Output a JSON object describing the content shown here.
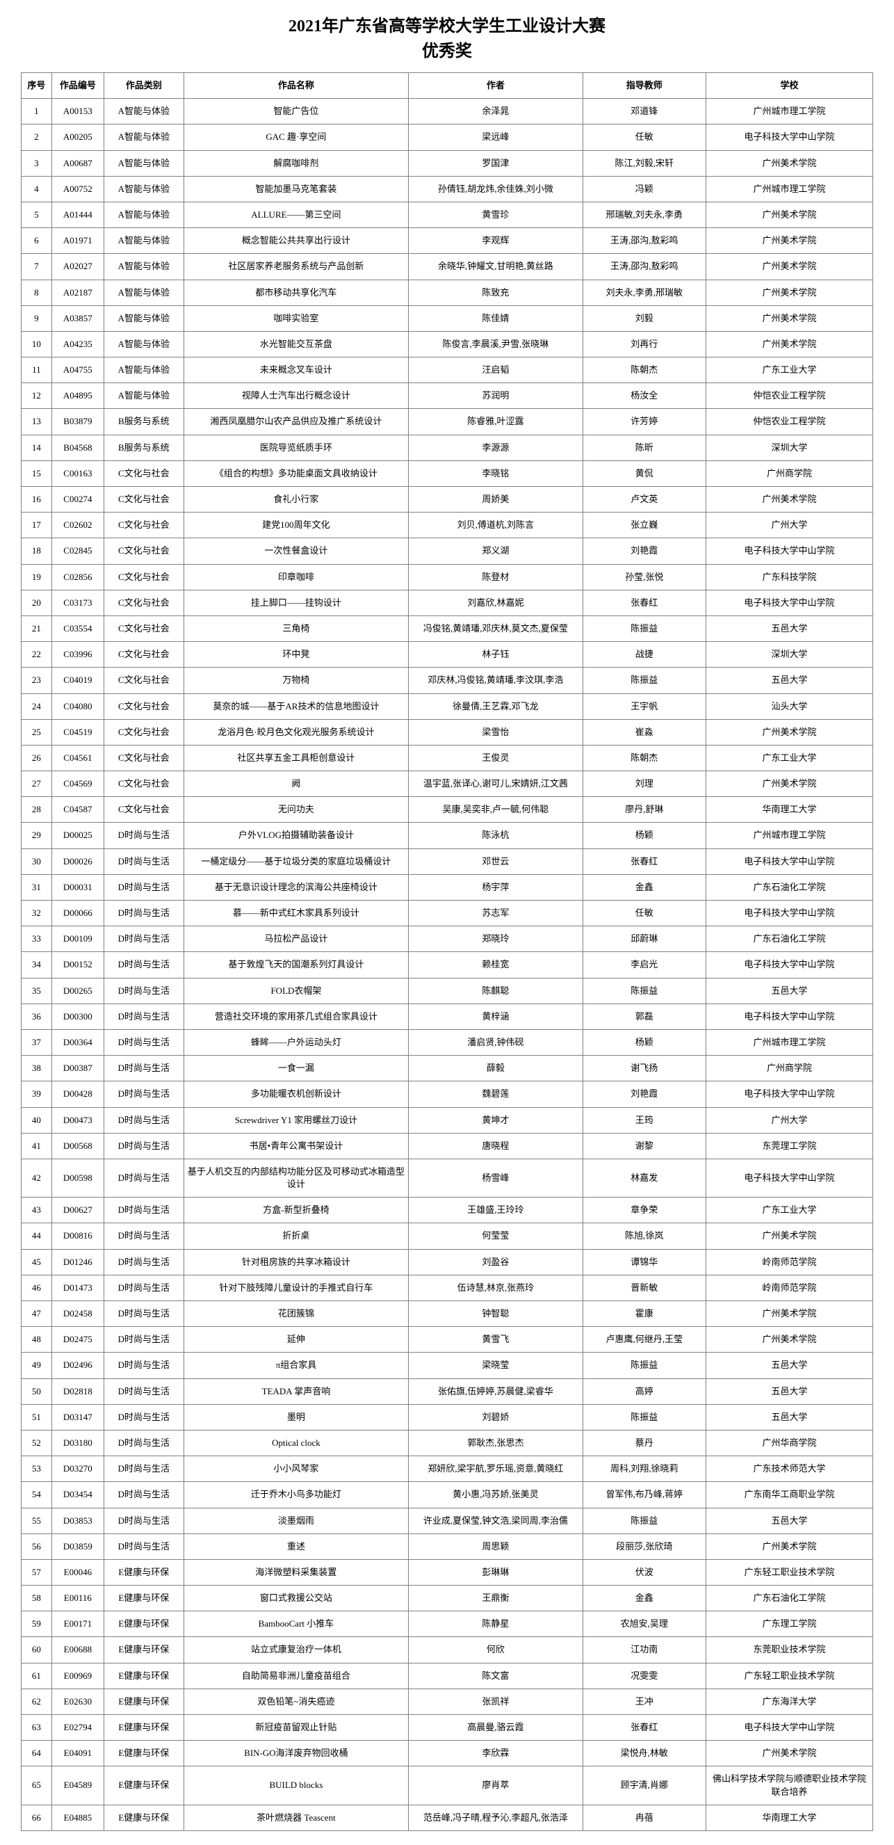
{
  "title_line1": "2021年广东省高等学校大学生工业设计大赛",
  "title_line2": "优秀奖",
  "columns": [
    "序号",
    "作品编号",
    "作品类别",
    "作品名称",
    "作者",
    "指导教师",
    "学校"
  ],
  "rows": [
    [
      "1",
      "A00153",
      "A智能与体验",
      "智能广告位",
      "余泽晁",
      "邓道锋",
      "广州城市理工学院"
    ],
    [
      "2",
      "A00205",
      "A智能与体验",
      "GAC 趣·享空间",
      "梁远峰",
      "任敏",
      "电子科技大学中山学院"
    ],
    [
      "3",
      "A00687",
      "A智能与体验",
      "解腐咖啡剂",
      "罗国津",
      "陈江,刘毅,宋轩",
      "广州美术学院"
    ],
    [
      "4",
      "A00752",
      "A智能与体验",
      "智能加墨马克笔套装",
      "孙倩钰,胡龙炜,余佳姝,刘小微",
      "冯颖",
      "广州城市理工学院"
    ],
    [
      "5",
      "A01444",
      "A智能与体验",
      "ALLURE——第三空间",
      "黄雪珍",
      "邢瑞敏,刘夫永,李勇",
      "广州美术学院"
    ],
    [
      "6",
      "A01971",
      "A智能与体验",
      "概念智能公共共享出行设计",
      "李观辉",
      "王涛,邵沟,敖彩鸣",
      "广州美术学院"
    ],
    [
      "7",
      "A02027",
      "A智能与体验",
      "社区居家养老服务系统与产品创新",
      "余晓华,钟耀文,甘明艳,黄丝路",
      "王涛,邵沟,敖彩鸣",
      "广州美术学院"
    ],
    [
      "8",
      "A02187",
      "A智能与体验",
      "都市移动共享化汽车",
      "陈致充",
      "刘夫永,李勇,邢瑞敏",
      "广州美术学院"
    ],
    [
      "9",
      "A03857",
      "A智能与体验",
      "咖啡实验室",
      "陈佳婧",
      "刘毅",
      "广州美术学院"
    ],
    [
      "10",
      "A04235",
      "A智能与体验",
      "水光智能交互茶盘",
      "陈俊言,李晨溪,尹雪,张晓琳",
      "刘再行",
      "广州美术学院"
    ],
    [
      "11",
      "A04755",
      "A智能与体验",
      "未来概念叉车设计",
      "汪启韬",
      "陈朝杰",
      "广东工业大学"
    ],
    [
      "12",
      "A04895",
      "A智能与体验",
      "视障人士汽车出行概念设计",
      "苏润明",
      "杨汝全",
      "仲恺农业工程学院"
    ],
    [
      "13",
      "B03879",
      "B服务与系统",
      "湘西凤凰腊尔山农产品供应及推广系统设计",
      "陈睿雅,叶涩露",
      "许芳婷",
      "仲恺农业工程学院"
    ],
    [
      "14",
      "B04568",
      "B服务与系统",
      "医院导览纸质手环",
      "李源源",
      "陈昕",
      "深圳大学"
    ],
    [
      "15",
      "C00163",
      "C文化与社会",
      "《组合的构想》多功能桌面文具收纳设计",
      "李晓铭",
      "黄侃",
      "广州商学院"
    ],
    [
      "16",
      "C00274",
      "C文化与社会",
      "食礼小行家",
      "周娇美",
      "卢文英",
      "广州美术学院"
    ],
    [
      "17",
      "C02602",
      "C文化与社会",
      "建党100周年文化",
      "刘贝,傅道杭,刘陈言",
      "张立巍",
      "广州大学"
    ],
    [
      "18",
      "C02845",
      "C文化与社会",
      "一次性餐盒设计",
      "郑义湖",
      "刘艳霞",
      "电子科技大学中山学院"
    ],
    [
      "19",
      "C02856",
      "C文化与社会",
      "印章咖啡",
      "陈登材",
      "孙莹,张悦",
      "广东科技学院"
    ],
    [
      "20",
      "C03173",
      "C文化与社会",
      "挂上脚口——挂钩设计",
      "刘嘉欣,林嘉妮",
      "张春红",
      "电子科技大学中山学院"
    ],
    [
      "21",
      "C03554",
      "C文化与社会",
      "三角椅",
      "冯俊铭,黄靖璠,邓庆林,莫文杰,夏保莹",
      "陈振益",
      "五邑大学"
    ],
    [
      "22",
      "C03996",
      "C文化与社会",
      "环中凳",
      "林子钰",
      "战捷",
      "深圳大学"
    ],
    [
      "23",
      "C04019",
      "C文化与社会",
      "万物椅",
      "邓庆林,冯俊铭,黄靖璠,李汶琪,李浩",
      "陈振益",
      "五邑大学"
    ],
    [
      "24",
      "C04080",
      "C文化与社会",
      "莫奈的城——基于AR技术的信息地图设计",
      "徐曼倩,王艺霖,邓飞龙",
      "王宇帆",
      "汕头大学"
    ],
    [
      "25",
      "C04519",
      "C文化与社会",
      "龙浴月色·皎月色文化观光服务系统设计",
      "梁雪怡",
      "崔淼",
      "广州美术学院"
    ],
    [
      "26",
      "C04561",
      "C文化与社会",
      "社区共享五金工具柜创意设计",
      "王俊灵",
      "陈朝杰",
      "广东工业大学"
    ],
    [
      "27",
      "C04569",
      "C文化与社会",
      "阙",
      "温宇蓝,张译心,谢可儿,宋婧妍,江文茜",
      "刘理",
      "广州美术学院"
    ],
    [
      "28",
      "C04587",
      "C文化与社会",
      "无问功夫",
      "吴康,吴奕非,卢一毓,何伟聪",
      "廖丹,舒琳",
      "华南理工大学"
    ],
    [
      "29",
      "D00025",
      "D时尚与生活",
      "户外VLOG拍摄辅助装备设计",
      "陈泳杭",
      "杨颖",
      "广州城市理工学院"
    ],
    [
      "30",
      "D00026",
      "D时尚与生活",
      "一桶定级分——基于垃圾分类的家庭垃圾桶设计",
      "邓世云",
      "张春红",
      "电子科技大学中山学院"
    ],
    [
      "31",
      "D00031",
      "D时尚与生活",
      "基于无意识设计理念的滨海公共座椅设计",
      "杨宇萍",
      "金鑫",
      "广东石油化工学院"
    ],
    [
      "32",
      "D00066",
      "D时尚与生活",
      "慕——新中式红木家具系列设计",
      "苏志军",
      "任敏",
      "电子科技大学中山学院"
    ],
    [
      "33",
      "D00109",
      "D时尚与生活",
      "马拉松产品设计",
      "郑晓玲",
      "邱蔚琳",
      "广东石油化工学院"
    ],
    [
      "34",
      "D00152",
      "D时尚与生活",
      "基于敦煌飞天的国潮系列灯具设计",
      "赖桂宽",
      "李启光",
      "电子科技大学中山学院"
    ],
    [
      "35",
      "D00265",
      "D时尚与生活",
      "FOLD衣帽架",
      "陈麒聪",
      "陈振益",
      "五邑大学"
    ],
    [
      "36",
      "D00300",
      "D时尚与生活",
      "营造社交环境的家用茶几式组合家具设计",
      "黄梓涵",
      "郭磊",
      "电子科技大学中山学院"
    ],
    [
      "37",
      "D00364",
      "D时尚与生活",
      "蜂眸——户外运动头灯",
      "潘启贤,钟伟砚",
      "杨颖",
      "广州城市理工学院"
    ],
    [
      "38",
      "D00387",
      "D时尚与生活",
      "一食一漏",
      "薛毅",
      "谢飞扬",
      "广州商学院"
    ],
    [
      "39",
      "D00428",
      "D时尚与生活",
      "多功能暖衣机创新设计",
      "魏碧莲",
      "刘艳霞",
      "电子科技大学中山学院"
    ],
    [
      "40",
      "D00473",
      "D时尚与生活",
      "Screwdriver Y1 家用螺丝刀设计",
      "黄坤才",
      "王筠",
      "广州大学"
    ],
    [
      "41",
      "D00568",
      "D时尚与生活",
      "书居•青年公寓书架设计",
      "唐晓程",
      "谢黎",
      "东莞理工学院"
    ],
    [
      "42",
      "D00598",
      "D时尚与生活",
      "基于人机交互的内部结构功能分区及可移动式冰箱造型设计",
      "杨雪峰",
      "林嘉发",
      "电子科技大学中山学院"
    ],
    [
      "43",
      "D00627",
      "D时尚与生活",
      "方盒-新型折叠椅",
      "王雄盛,王玲玲",
      "章争荣",
      "广东工业大学"
    ],
    [
      "44",
      "D00816",
      "D时尚与生活",
      "折折桌",
      "何莹莹",
      "陈旭,徐岚",
      "广州美术学院"
    ],
    [
      "45",
      "D01246",
      "D时尚与生活",
      "针对租房族的共享冰箱设计",
      "刘盈谷",
      "谭锦华",
      "岭南师范学院"
    ],
    [
      "46",
      "D01473",
      "D时尚与生活",
      "针对下肢残障儿童设计的手推式自行车",
      "伍诗慧,林京,张燕玲",
      "晋新敏",
      "岭南师范学院"
    ],
    [
      "47",
      "D02458",
      "D时尚与生活",
      "花团簇锦",
      "钟智聪",
      "霍康",
      "广州美术学院"
    ],
    [
      "48",
      "D02475",
      "D时尚与生活",
      "延伸",
      "黄雪飞",
      "卢惠鹰,何继丹,王莹",
      "广州美术学院"
    ],
    [
      "49",
      "D02496",
      "D时尚与生活",
      "π组合家具",
      "梁晓莹",
      "陈振益",
      "五邑大学"
    ],
    [
      "50",
      "D02818",
      "D时尚与生活",
      "TEADA 掌声音响",
      "张佑旗,伍婷婷,苏晨健,梁睿华",
      "高婷",
      "五邑大学"
    ],
    [
      "51",
      "D03147",
      "D时尚与生活",
      "墨明",
      "刘碧娇",
      "陈振益",
      "五邑大学"
    ],
    [
      "52",
      "D03180",
      "D时尚与生活",
      "Optical clock",
      "郭耿杰,张思杰",
      "蔡丹",
      "广州华商学院"
    ],
    [
      "53",
      "D03270",
      "D时尚与生活",
      "小小风琴家",
      "郑妍欣,梁宇航,罗乐瑶,资意,黄晓红",
      "周科,刘翔,徐晓莉",
      "广东技术师范大学"
    ],
    [
      "54",
      "D03454",
      "D时尚与生活",
      "迁于乔木小鸟多功能灯",
      "黄小惠,冯苏娇,张美灵",
      "曾军伟,布乃峰,蒋婷",
      "广东南华工商职业学院"
    ],
    [
      "55",
      "D03853",
      "D时尚与生活",
      "淡墨烟雨",
      "许业成,夏保莹,钟文浩,梁同周,李治儒",
      "陈振益",
      "五邑大学"
    ],
    [
      "56",
      "D03859",
      "D时尚与生活",
      "重述",
      "周思颖",
      "段丽莎,张欣琦",
      "广州美术学院"
    ],
    [
      "57",
      "E00046",
      "E健康与环保",
      "海洋微塑料采集装置",
      "彭琳琳",
      "伏波",
      "广东轻工职业技术学院"
    ],
    [
      "58",
      "E00116",
      "E健康与环保",
      "窗口式救援公交站",
      "王鼎衡",
      "金鑫",
      "广东石油化工学院"
    ],
    [
      "59",
      "E00171",
      "E健康与环保",
      "BambooCart 小推车",
      "陈静星",
      "农旭安,吴理",
      "广东理工学院"
    ],
    [
      "60",
      "E00688",
      "E健康与环保",
      "站立式康复治疗一体机",
      "何欣",
      "江功南",
      "东莞职业技术学院"
    ],
    [
      "61",
      "E00969",
      "E健康与环保",
      "自助简易非洲儿童疫苗组合",
      "陈文富",
      "况雯雯",
      "广东轻工职业技术学院"
    ],
    [
      "62",
      "E02630",
      "E健康与环保",
      "双色铅笔~消失癌迹",
      "张凯祥",
      "王冲",
      "广东海洋大学"
    ],
    [
      "63",
      "E02794",
      "E健康与环保",
      "新冠疫苗留观止针贴",
      "高晨曼,骆云霞",
      "张春红",
      "电子科技大学中山学院"
    ],
    [
      "64",
      "E04091",
      "E健康与环保",
      "BIN-GO海洋废弃物回收桶",
      "李欣霖",
      "梁悦舟,林敏",
      "广州美术学院"
    ],
    [
      "65",
      "E04589",
      "E健康与环保",
      "BUILD blocks",
      "廖肖萃",
      "顾宇清,肖娜",
      "佛山科学技术学院与顺德职业技术学院联合培养"
    ],
    [
      "66",
      "E04885",
      "E健康与环保",
      "茶叶燃烧器 Teascent",
      "范岳峰,冯子晴,程予沁,李超凡,张浩泽",
      "冉蓓",
      "华南理工大学"
    ]
  ]
}
